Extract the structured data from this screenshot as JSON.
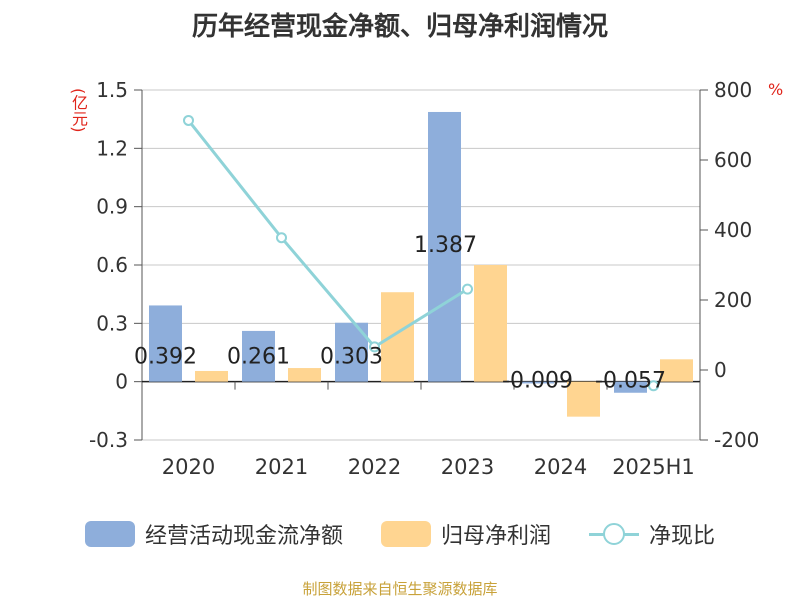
{
  "title": "历年经营现金净额、归母净利润情况",
  "source": "制图数据来自恒生聚源数据库",
  "units": {
    "left": "(亿元)",
    "right": "%"
  },
  "colors": {
    "cashflow": "#8eaedb",
    "profit": "#ffd591",
    "ratio": "#8fd3d8"
  },
  "chart_data": {
    "type": "bar",
    "categories": [
      "2020",
      "2021",
      "2022",
      "2023",
      "2024",
      "2025H1"
    ],
    "series": [
      {
        "name": "经营活动现金流净额",
        "type": "bar",
        "axis": "left",
        "values": [
          0.392,
          0.261,
          0.303,
          1.387,
          -0.009,
          -0.057
        ],
        "labels": [
          "0.392",
          "0.261",
          "0.303",
          "1.387",
          "-0.009",
          "-0.057"
        ]
      },
      {
        "name": "归母净利润",
        "type": "bar",
        "axis": "left",
        "values": [
          0.055,
          0.07,
          0.46,
          0.6,
          -0.18,
          0.115
        ]
      },
      {
        "name": "净现比",
        "type": "line",
        "axis": "right",
        "values": [
          713,
          378,
          66,
          231,
          null,
          -45
        ]
      }
    ],
    "left_axis": {
      "ylim": [
        -0.3,
        1.5
      ],
      "ticks": [
        "-0.3",
        "0",
        "0.3",
        "0.6",
        "0.9",
        "1.2",
        "1.5"
      ]
    },
    "right_axis": {
      "ylim": [
        -200,
        800
      ],
      "ticks": [
        "-200",
        "0",
        "200",
        "400",
        "600",
        "800"
      ]
    },
    "grid": true,
    "legend": "bottom"
  }
}
